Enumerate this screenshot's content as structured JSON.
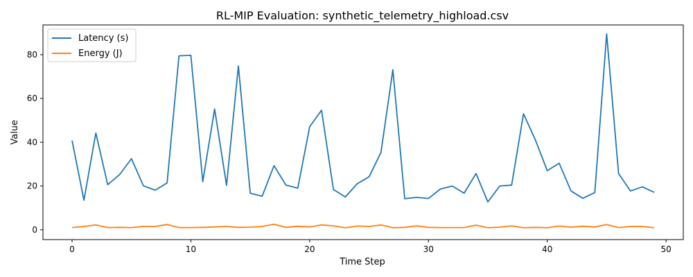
{
  "chart_data": {
    "type": "line",
    "title": "RL-MIP Evaluation: synthetic_telemetry_highload.csv",
    "xlabel": "Time Step",
    "ylabel": "Value",
    "xlim": [
      -2.45,
      51.45
    ],
    "ylim": [
      -4.5,
      93.6
    ],
    "xticks": [
      0,
      10,
      20,
      30,
      40,
      50
    ],
    "yticks": [
      0,
      20,
      40,
      60,
      80
    ],
    "grid": false,
    "legend_position": "top-left",
    "x": [
      0,
      1,
      2,
      3,
      4,
      5,
      6,
      7,
      8,
      9,
      10,
      11,
      12,
      13,
      14,
      15,
      16,
      17,
      18,
      19,
      20,
      21,
      22,
      23,
      24,
      25,
      26,
      27,
      28,
      29,
      30,
      31,
      32,
      33,
      34,
      35,
      36,
      37,
      38,
      39,
      40,
      41,
      42,
      43,
      44,
      45,
      46,
      47,
      48,
      49
    ],
    "series": [
      {
        "name": "Latency (s)",
        "color": "#1f77b4",
        "values": [
          40.8,
          13.5,
          44.2,
          20.6,
          25.2,
          32.5,
          20.1,
          18.1,
          21.4,
          79.5,
          79.7,
          22.0,
          55.2,
          20.3,
          74.9,
          16.7,
          15.3,
          29.3,
          20.4,
          19.0,
          47.1,
          54.6,
          18.4,
          15.0,
          21.0,
          24.2,
          35.3,
          73.1,
          14.2,
          14.8,
          14.3,
          18.6,
          20.0,
          16.7,
          25.7,
          12.7,
          20.0,
          20.4,
          53.0,
          41.0,
          27.0,
          30.4,
          17.7,
          14.4,
          17.0,
          89.5,
          25.7,
          17.7,
          19.6,
          17.1
        ]
      },
      {
        "name": "Energy (J)",
        "color": "#ff7f0e",
        "values": [
          1.0,
          1.5,
          2.2,
          1.0,
          1.1,
          1.0,
          1.5,
          1.5,
          2.4,
          1.0,
          1.0,
          1.1,
          1.3,
          1.5,
          1.1,
          1.2,
          1.5,
          2.5,
          1.1,
          1.6,
          1.3,
          2.2,
          1.8,
          0.9,
          1.7,
          1.5,
          2.2,
          0.9,
          1.1,
          1.8,
          1.1,
          1.0,
          1.0,
          1.0,
          2.1,
          0.9,
          1.2,
          1.8,
          0.9,
          1.1,
          0.9,
          1.7,
          1.2,
          1.6,
          1.3,
          2.4,
          1.0,
          1.5,
          1.5,
          0.9
        ]
      }
    ]
  }
}
